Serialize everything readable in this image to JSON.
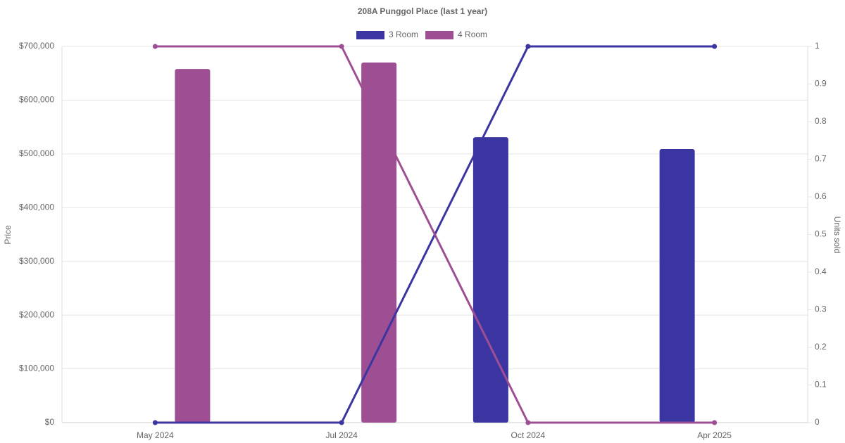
{
  "chart_data": {
    "type": "bar-line",
    "title": "208A Punggol Place (last 1 year)",
    "y_label": "Price",
    "y2_label": "Units sold",
    "categories": [
      "May 2024",
      "Jul 2024",
      "Oct 2024",
      "Apr 2025"
    ],
    "series": [
      {
        "name": "3 Room",
        "color": "#3a35a1",
        "values": [
          null,
          null,
          531000,
          509000
        ],
        "units": [
          0,
          0,
          1,
          1
        ]
      },
      {
        "name": "4 Room",
        "color": "#9e4f94",
        "values": [
          658000,
          670000,
          null,
          null
        ],
        "units": [
          1,
          1,
          0,
          0
        ]
      }
    ],
    "ylim": [
      0,
      700000
    ],
    "yticks": [
      {
        "value": 0,
        "label": "$0"
      },
      {
        "value": 100000,
        "label": "$100,000"
      },
      {
        "value": 200000,
        "label": "$200,000"
      },
      {
        "value": 300000,
        "label": "$300,000"
      },
      {
        "value": 400000,
        "label": "$400,000"
      },
      {
        "value": 500000,
        "label": "$500,000"
      },
      {
        "value": 600000,
        "label": "$600,000"
      },
      {
        "value": 700000,
        "label": "$700,000"
      }
    ],
    "y2lim": [
      0,
      1
    ],
    "y2ticks": [
      0,
      0.1,
      0.2,
      0.3,
      0.4,
      0.5,
      0.6,
      0.7,
      0.8,
      0.9,
      1
    ],
    "grid": true,
    "legend": "top"
  }
}
